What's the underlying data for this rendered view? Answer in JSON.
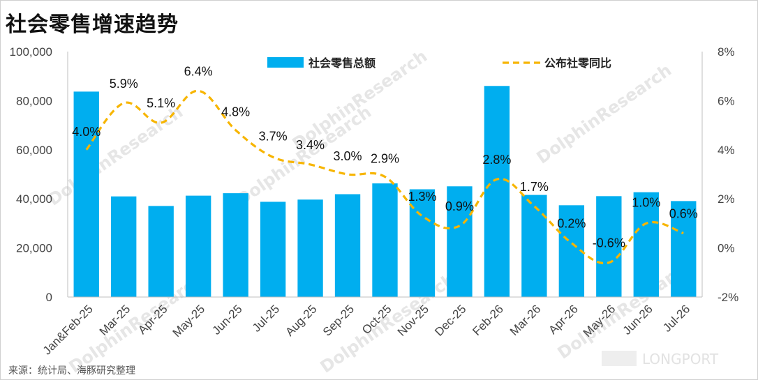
{
  "page": {
    "title": "社会零售增速趋势",
    "source_note": "来源：统计局、海豚研究整理",
    "watermark_text": "DolphinResearch",
    "brand_text": "LONGPORT"
  },
  "colors": {
    "bar": "#00aeef",
    "line": "#f7b500",
    "axis": "#bfbfbf",
    "text": "#444444",
    "watermark": "#e6e6e6"
  },
  "chart_data": {
    "type": "bar",
    "title": "社会零售增速趋势",
    "categories": [
      "Jan&Feb-25",
      "Mar-25",
      "Apr-25",
      "May-25",
      "Jun-25",
      "Jul-25",
      "Aug-25",
      "Sep-25",
      "Oct-25",
      "Nov-25",
      "Dec-25",
      "Feb-26",
      "Mar-26",
      "Apr-26",
      "May-26",
      "Jun-26",
      "Jul-26"
    ],
    "ylim_left": [
      0,
      100000
    ],
    "ylim_right": [
      -2,
      8
    ],
    "left_ticks": [
      "0",
      "20,000",
      "40,000",
      "60,000",
      "80,000",
      "100,000"
    ],
    "right_ticks": [
      "-2%",
      "0%",
      "2%",
      "4%",
      "6%",
      "8%"
    ],
    "series": [
      {
        "name": "社会零售总额",
        "type": "bar",
        "axis": "left",
        "values": [
          83700,
          41000,
          37100,
          41300,
          42300,
          38800,
          39700,
          41900,
          46300,
          43900,
          45100,
          86000,
          41600,
          37400,
          41100,
          42700,
          39100
        ]
      },
      {
        "name": "公布社零同比",
        "type": "line",
        "style": "dashed",
        "axis": "right",
        "values": [
          4.0,
          5.9,
          5.1,
          6.4,
          4.8,
          3.7,
          3.4,
          3.0,
          2.9,
          1.3,
          0.9,
          2.8,
          1.7,
          0.2,
          -0.6,
          1.0,
          0.6
        ],
        "labels": [
          "4.0%",
          "5.9%",
          "5.1%",
          "6.4%",
          "4.8%",
          "3.7%",
          "3.4%",
          "3.0%",
          "2.9%",
          "1.3%",
          "0.9%",
          "2.8%",
          "1.7%",
          "0.2%",
          "-0.6%",
          "1.0%",
          "0.6%"
        ]
      }
    ],
    "legend_position": "top-center",
    "grid": false
  }
}
